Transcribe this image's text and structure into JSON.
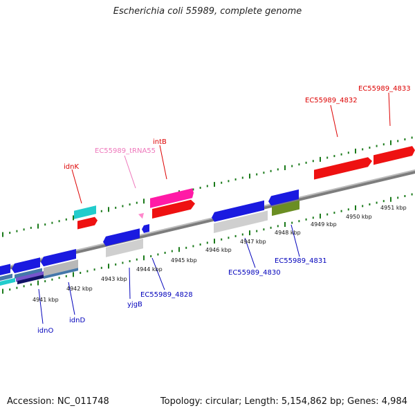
{
  "title": "Escherichia coli 55989, complete genome",
  "footer": {
    "accession": "Accession: NC_011748",
    "summary": "Topology: circular; Length: 5,154,862 bp; Genes: 4,984"
  },
  "colors": {
    "backbone": "#8a8a8a",
    "tick": "#1a7a1a",
    "forward_cds": "#ee1111",
    "reverse_cds": "#1a1ae0",
    "rna": "#ff1aa6",
    "label_red": "#dd0000",
    "label_blue": "#0000bb",
    "label_pink": "#ee77bb"
  },
  "scale_labels": [
    "4941 kbp",
    "4942 kbp",
    "4943 kbp",
    "4944 kbp",
    "4945 kbp",
    "4946 kbp",
    "4947 kbp",
    "4948 kbp",
    "4949 kbp",
    "4950 kbp",
    "4951 kbp"
  ],
  "gene_labels": [
    {
      "text": "EC55989_4833",
      "color": "red"
    },
    {
      "text": "EC55989_4832",
      "color": "red"
    },
    {
      "text": "intB",
      "color": "red"
    },
    {
      "text": "EC55989_tRNA55",
      "color": "pink"
    },
    {
      "text": "idnK",
      "color": "red"
    },
    {
      "text": "EC55989_4831",
      "color": "blue"
    },
    {
      "text": "EC55989_4830",
      "color": "blue"
    },
    {
      "text": "EC55989_4828",
      "color": "blue"
    },
    {
      "text": "yjgB",
      "color": "blue"
    },
    {
      "text": "idnD",
      "color": "blue"
    },
    {
      "text": "idnO",
      "color": "blue"
    }
  ]
}
